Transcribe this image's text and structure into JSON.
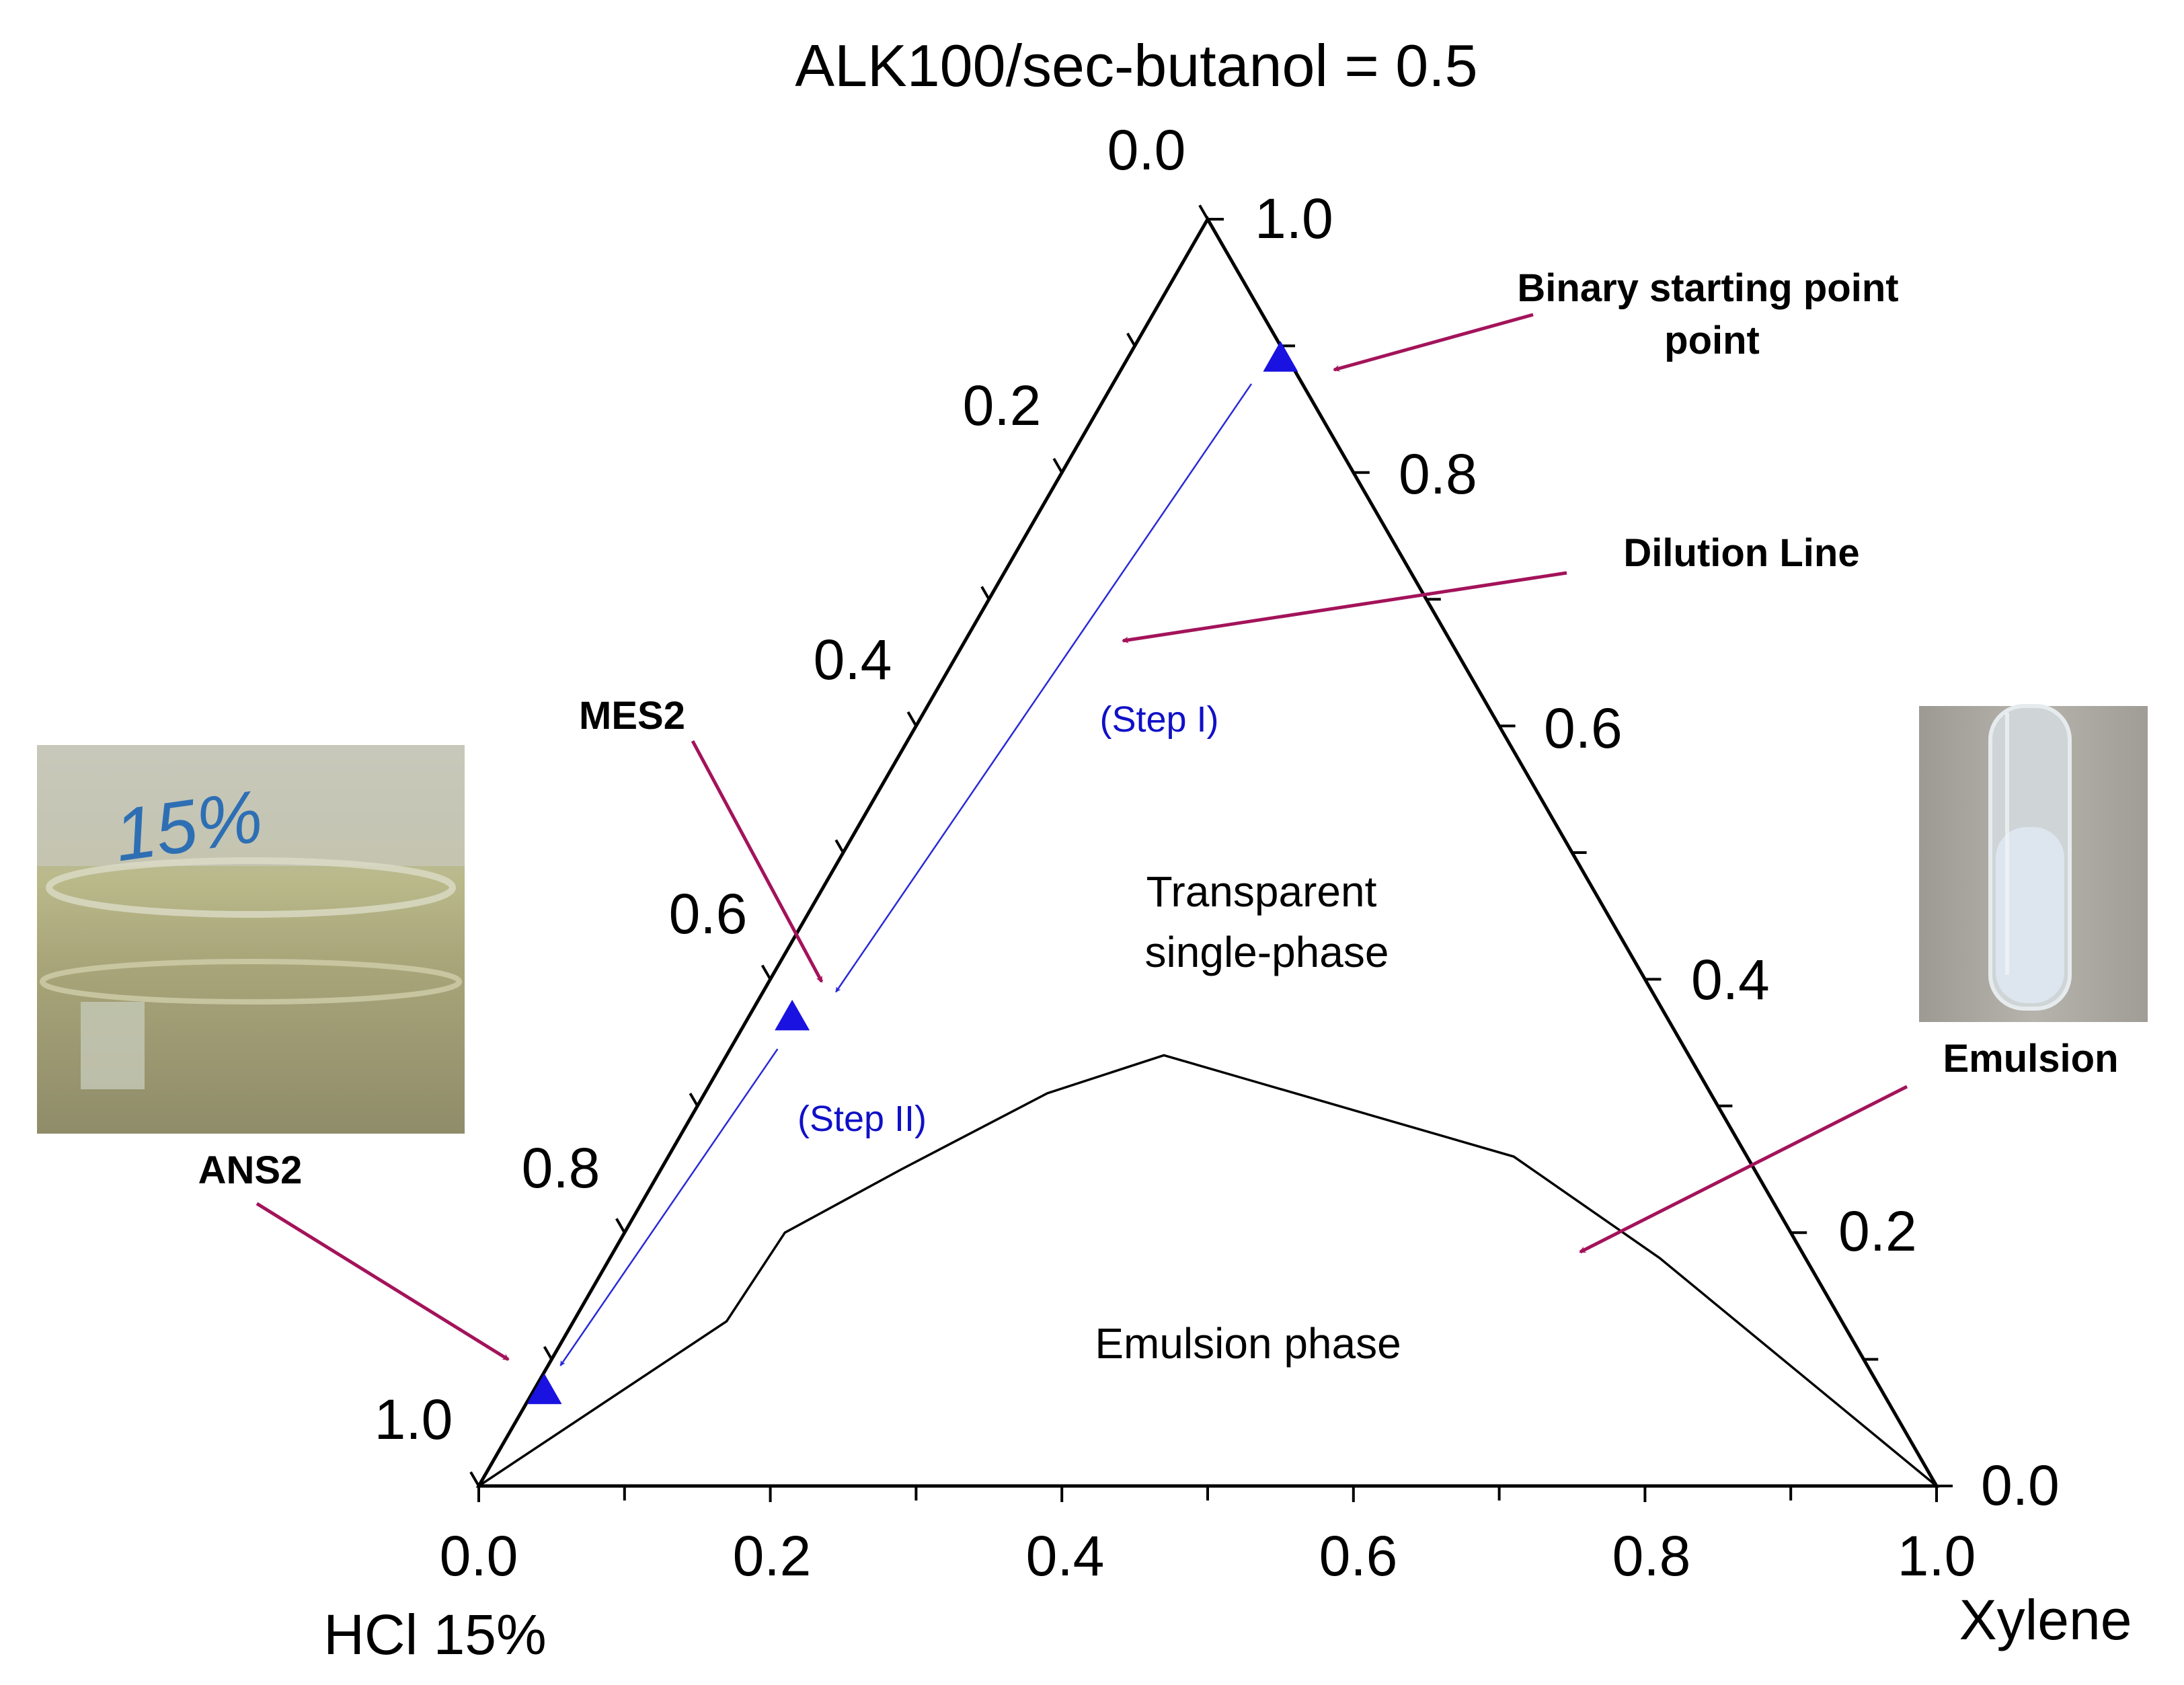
{
  "chart_data": {
    "type": "ternary",
    "title": "ALK100/sec-butanol = 0.5",
    "axes": {
      "bottom_label": "HCl 15%",
      "right_label": "Xylene",
      "bottom_ticks": [
        "0.0",
        "0.2",
        "0.4",
        "0.6",
        "0.8",
        "1.0"
      ],
      "right_ticks": [
        "0.0",
        "0.2",
        "0.4",
        "0.6",
        "0.8",
        "1.0"
      ],
      "left_ticks": [
        "0.0",
        "0.2",
        "0.4",
        "0.6",
        "0.8",
        "1.0"
      ],
      "range": [
        0,
        1
      ]
    },
    "phase_boundary": [
      [
        0.0,
        0.0
      ],
      [
        0.17,
        0.13
      ],
      [
        0.21,
        0.2
      ],
      [
        0.29,
        0.25
      ],
      [
        0.39,
        0.31
      ],
      [
        0.47,
        0.34
      ],
      [
        0.53,
        0.32
      ],
      [
        0.71,
        0.26
      ],
      [
        0.81,
        0.18
      ],
      [
        1.0,
        0.0
      ]
    ],
    "points": [
      {
        "name": "Binary starting point",
        "x": 0.55,
        "y": 0.89
      },
      {
        "name": "MES2",
        "x": 0.215,
        "y": 0.37
      },
      {
        "name": "ANS2",
        "x": 0.045,
        "y": 0.075
      }
    ],
    "dilution_steps": [
      {
        "label": "(Step I)",
        "from": [
          0.53,
          0.87
        ],
        "to": [
          0.245,
          0.39
        ]
      },
      {
        "label": "(Step II)",
        "from": [
          0.205,
          0.345
        ],
        "to": [
          0.056,
          0.095
        ]
      }
    ],
    "annotations": {
      "binary_start": [
        "Binary starting point",
        "point"
      ],
      "dilution_line": "Dilution Line",
      "mes2": "MES2",
      "ans2": "ANS2",
      "emulsion": "Emulsion"
    },
    "regions": {
      "single_phase": [
        "Transparent",
        "single-phase"
      ],
      "emulsion_phase": "Emulsion phase"
    },
    "photos": [
      {
        "name": "ANS2 sample flask",
        "handwriting": "15%",
        "tint": "#a9a67a"
      },
      {
        "name": "Emulsion sample tube",
        "tint": "#dde6ee"
      }
    ],
    "colors": {
      "markers": "#1a12e0",
      "dilution_line": "#2a2ad8",
      "annotation_arrows": "#a3135a",
      "boundary": "#000000"
    }
  }
}
